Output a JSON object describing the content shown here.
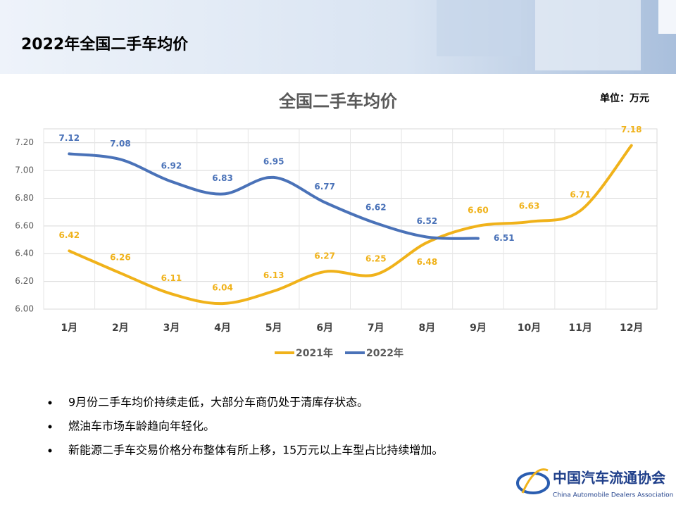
{
  "header": {
    "title": "2022年全国二手车均价"
  },
  "chart_data": {
    "type": "line",
    "title": "全国二手车均价",
    "unit": "单位：万元",
    "categories": [
      "1月",
      "2月",
      "3月",
      "4月",
      "5月",
      "6月",
      "7月",
      "8月",
      "9月",
      "10月",
      "11月",
      "12月"
    ],
    "series": [
      {
        "name": "2021年",
        "color": "#f0b21a",
        "values": [
          6.42,
          6.26,
          6.11,
          6.04,
          6.13,
          6.27,
          6.25,
          6.48,
          6.6,
          6.63,
          6.71,
          7.18
        ],
        "value_labels": [
          "6.42",
          "6.26",
          "6.11",
          "6.04",
          "6.13",
          "6.27",
          "6.25",
          "6.48",
          "6.60",
          "6.63",
          "6.71",
          "7.18"
        ]
      },
      {
        "name": "2022年",
        "color": "#4a72b8",
        "values": [
          7.12,
          7.08,
          6.92,
          6.83,
          6.95,
          6.77,
          6.62,
          6.52,
          6.51,
          null,
          null,
          null
        ],
        "value_labels": [
          "7.12",
          "7.08",
          "6.92",
          "6.83",
          "6.95",
          "6.77",
          "6.62",
          "6.52",
          "6.51",
          null,
          null,
          null
        ]
      }
    ],
    "ylim": [
      6.0,
      7.3
    ],
    "yticks": [
      {
        "value": 6.0,
        "label": "6.00"
      },
      {
        "value": 6.2,
        "label": "6.20"
      },
      {
        "value": 6.4,
        "label": "6.40"
      },
      {
        "value": 6.6,
        "label": "6.60"
      },
      {
        "value": 6.8,
        "label": "6.80"
      },
      {
        "value": 7.0,
        "label": "7.00"
      },
      {
        "value": 7.2,
        "label": "7.20"
      }
    ],
    "grid": true,
    "legend": "bottom",
    "smooth": true
  },
  "bullets": [
    "9月份二手车均价持续走低，大部分车商仍处于清库存状态。",
    "燃油车市场车龄趋向年轻化。",
    "新能源二手车交易价格分布整体有所上移，15万元以上车型占比持续增加。"
  ],
  "logo": {
    "name": "中国汽车流通协会",
    "english": "China Automobile Dealers Association"
  }
}
